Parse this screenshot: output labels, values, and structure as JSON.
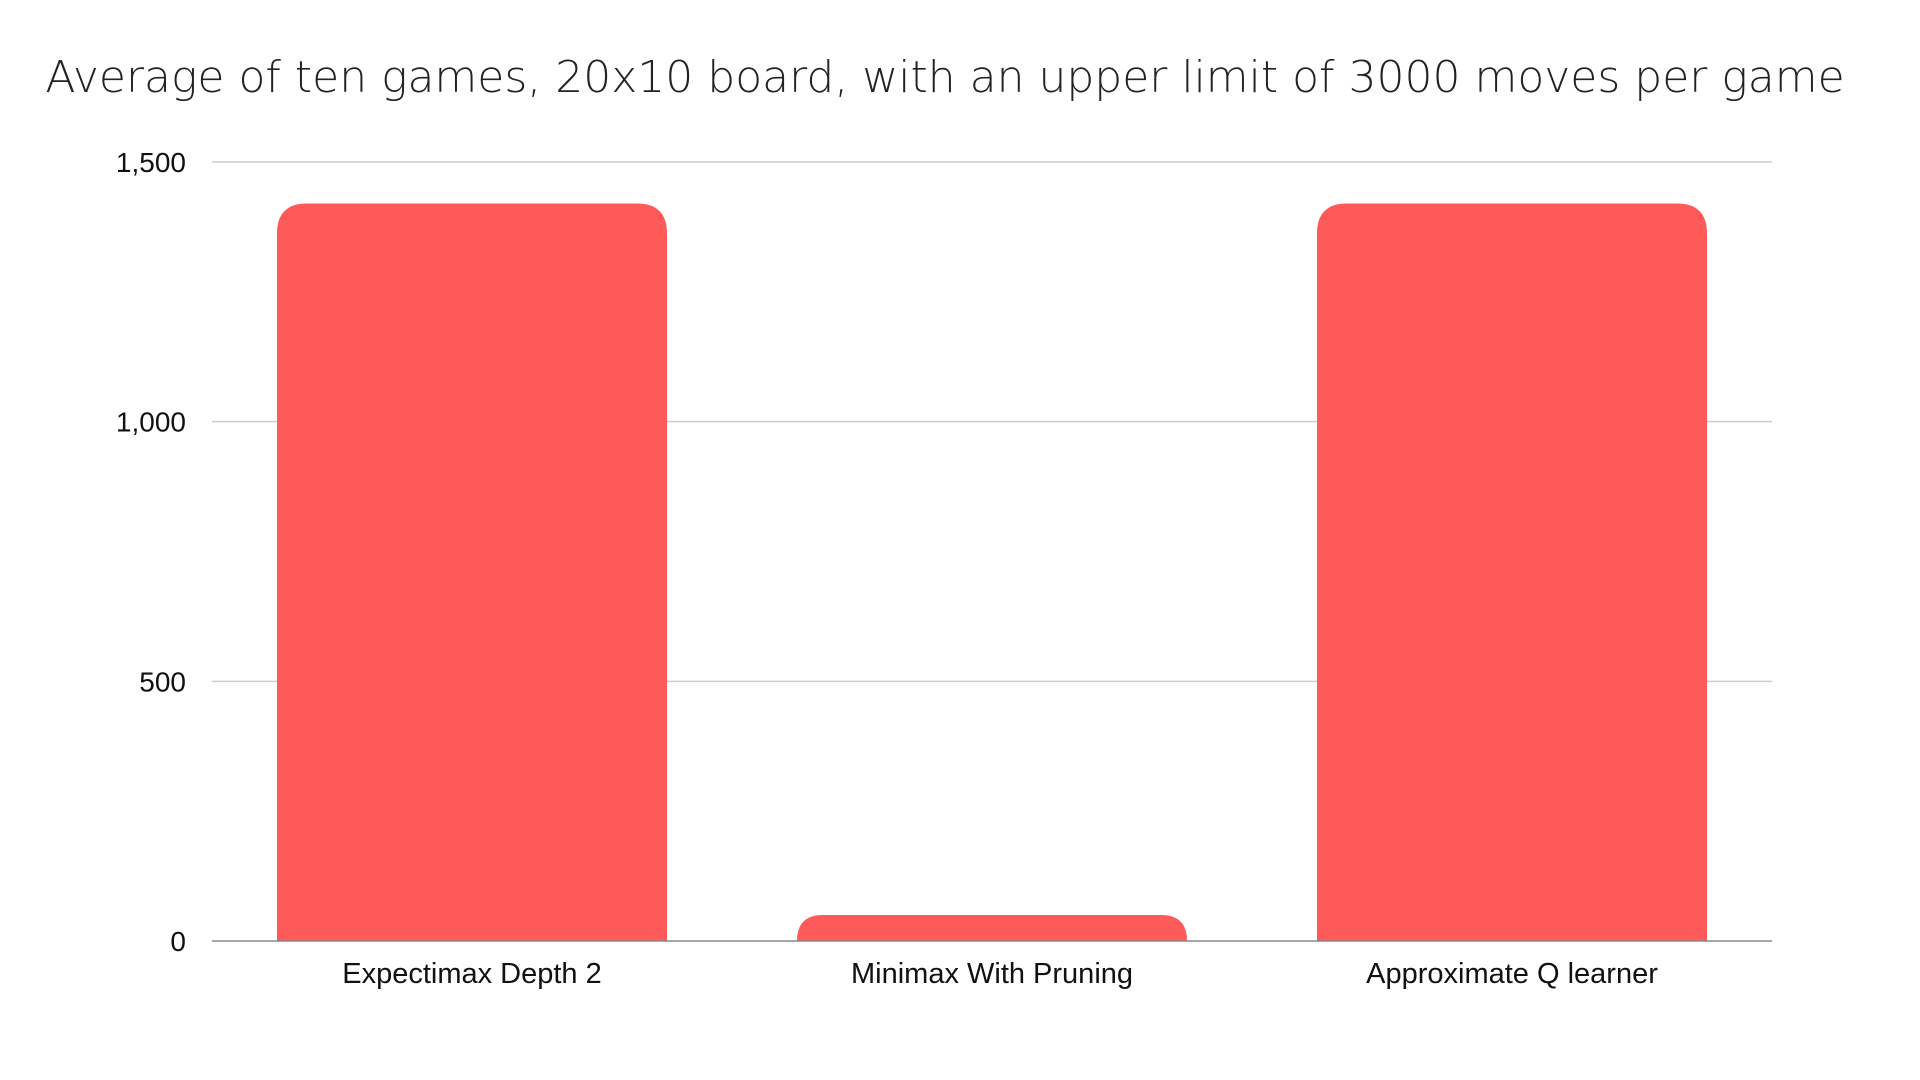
{
  "chart_data": {
    "type": "bar",
    "title": "Average of ten games, 20x10 board, with an upper limit of 3000 moves per game",
    "xlabel": "",
    "ylabel": "",
    "categories": [
      "Expectimax Depth 2",
      "Minimax With Pruning",
      "Approximate Q learner"
    ],
    "values": [
      1420,
      50,
      1420
    ],
    "ylim": [
      0,
      1500
    ],
    "yticks": [
      0,
      500,
      1000,
      1500
    ],
    "ytick_labels": [
      "0",
      "500",
      "1,000",
      "1,500"
    ],
    "grid": true,
    "legend": "none",
    "bar_color": "#ff5a5a",
    "grid_color": "#cccccc"
  }
}
